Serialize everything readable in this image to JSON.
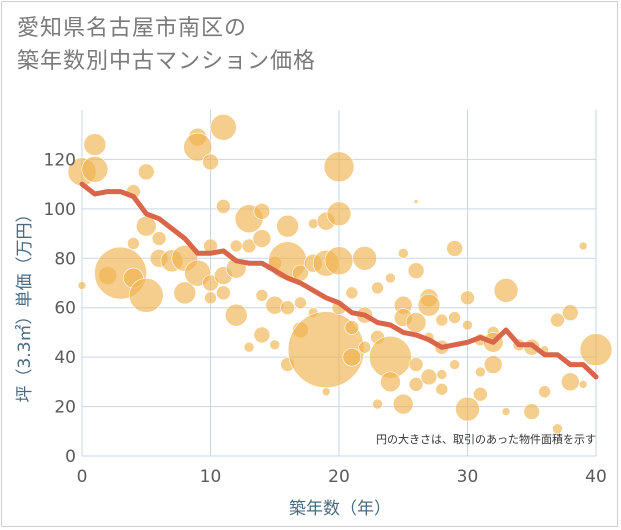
{
  "chart_data": {
    "type": "scatter",
    "title_line1": "愛知県名古屋市南区の",
    "title_line2": "築年数別中古マンション価格",
    "xlabel": "築年数（年）",
    "ylabel": "坪（3.3㎡）単価（万円）",
    "note": "円の大きさは、取引のあった物件面積を示す",
    "xlim": [
      0,
      40
    ],
    "ylim": [
      0,
      140
    ],
    "xticks": [
      "0",
      "10",
      "20",
      "30",
      "40"
    ],
    "yticks": [
      "0",
      "20",
      "40",
      "60",
      "80",
      "100",
      "120"
    ],
    "grid": true,
    "colors": {
      "bubble": "#f0b24f",
      "line": "#d9654a",
      "grid": "#c9d6e3",
      "axis_text": "#4a6a80"
    },
    "trend": [
      {
        "x": 0,
        "y": 110
      },
      {
        "x": 1,
        "y": 106
      },
      {
        "x": 2,
        "y": 107
      },
      {
        "x": 3,
        "y": 107
      },
      {
        "x": 4,
        "y": 105
      },
      {
        "x": 5,
        "y": 98
      },
      {
        "x": 6,
        "y": 96
      },
      {
        "x": 7,
        "y": 92
      },
      {
        "x": 8,
        "y": 88
      },
      {
        "x": 9,
        "y": 82
      },
      {
        "x": 10,
        "y": 82
      },
      {
        "x": 11,
        "y": 83
      },
      {
        "x": 12,
        "y": 79
      },
      {
        "x": 13,
        "y": 78
      },
      {
        "x": 14,
        "y": 78
      },
      {
        "x": 15,
        "y": 75
      },
      {
        "x": 16,
        "y": 72
      },
      {
        "x": 17,
        "y": 70
      },
      {
        "x": 18,
        "y": 67
      },
      {
        "x": 19,
        "y": 64
      },
      {
        "x": 20,
        "y": 62
      },
      {
        "x": 21,
        "y": 58
      },
      {
        "x": 22,
        "y": 57
      },
      {
        "x": 23,
        "y": 54
      },
      {
        "x": 24,
        "y": 53
      },
      {
        "x": 25,
        "y": 50
      },
      {
        "x": 26,
        "y": 49
      },
      {
        "x": 27,
        "y": 47
      },
      {
        "x": 28,
        "y": 44
      },
      {
        "x": 29,
        "y": 45
      },
      {
        "x": 30,
        "y": 46
      },
      {
        "x": 31,
        "y": 48
      },
      {
        "x": 32,
        "y": 46
      },
      {
        "x": 33,
        "y": 51
      },
      {
        "x": 34,
        "y": 45
      },
      {
        "x": 35,
        "y": 45
      },
      {
        "x": 36,
        "y": 41
      },
      {
        "x": 37,
        "y": 41
      },
      {
        "x": 38,
        "y": 37
      },
      {
        "x": 39,
        "y": 37
      },
      {
        "x": 40,
        "y": 32
      }
    ],
    "bubbles": [
      {
        "x": 0,
        "y": 115,
        "r": 14
      },
      {
        "x": 1,
        "y": 126,
        "r": 11
      },
      {
        "x": 1,
        "y": 116,
        "r": 13
      },
      {
        "x": 0,
        "y": 69,
        "r": 4
      },
      {
        "x": 2,
        "y": 73,
        "r": 9
      },
      {
        "x": 3,
        "y": 74,
        "r": 26
      },
      {
        "x": 4,
        "y": 72,
        "r": 10
      },
      {
        "x": 4,
        "y": 107,
        "r": 7
      },
      {
        "x": 4,
        "y": 86,
        "r": 6
      },
      {
        "x": 5,
        "y": 115,
        "r": 8
      },
      {
        "x": 5,
        "y": 93,
        "r": 10
      },
      {
        "x": 5,
        "y": 65,
        "r": 17
      },
      {
        "x": 6,
        "y": 88,
        "r": 7
      },
      {
        "x": 6,
        "y": 80,
        "r": 9
      },
      {
        "x": 7,
        "y": 79,
        "r": 11
      },
      {
        "x": 8,
        "y": 80,
        "r": 13
      },
      {
        "x": 8,
        "y": 66,
        "r": 11
      },
      {
        "x": 9,
        "y": 129,
        "r": 9
      },
      {
        "x": 9,
        "y": 125,
        "r": 14
      },
      {
        "x": 9,
        "y": 74,
        "r": 13
      },
      {
        "x": 10,
        "y": 119,
        "r": 8
      },
      {
        "x": 10,
        "y": 85,
        "r": 7
      },
      {
        "x": 10,
        "y": 70,
        "r": 8
      },
      {
        "x": 10,
        "y": 64,
        "r": 6
      },
      {
        "x": 11,
        "y": 133,
        "r": 13
      },
      {
        "x": 11,
        "y": 101,
        "r": 7
      },
      {
        "x": 11,
        "y": 73,
        "r": 9
      },
      {
        "x": 11,
        "y": 66,
        "r": 7
      },
      {
        "x": 12,
        "y": 85,
        "r": 6
      },
      {
        "x": 12,
        "y": 76,
        "r": 10
      },
      {
        "x": 12,
        "y": 57,
        "r": 11
      },
      {
        "x": 13,
        "y": 96,
        "r": 14
      },
      {
        "x": 13,
        "y": 85,
        "r": 7
      },
      {
        "x": 13,
        "y": 44,
        "r": 5
      },
      {
        "x": 14,
        "y": 99,
        "r": 8
      },
      {
        "x": 14,
        "y": 88,
        "r": 9
      },
      {
        "x": 14,
        "y": 65,
        "r": 6
      },
      {
        "x": 14,
        "y": 49,
        "r": 8
      },
      {
        "x": 15,
        "y": 78,
        "r": 7
      },
      {
        "x": 15,
        "y": 61,
        "r": 9
      },
      {
        "x": 15,
        "y": 45,
        "r": 5
      },
      {
        "x": 16,
        "y": 93,
        "r": 11
      },
      {
        "x": 16,
        "y": 79,
        "r": 19
      },
      {
        "x": 16,
        "y": 60,
        "r": 7
      },
      {
        "x": 16,
        "y": 37,
        "r": 7
      },
      {
        "x": 17,
        "y": 74,
        "r": 8
      },
      {
        "x": 17,
        "y": 62,
        "r": 6
      },
      {
        "x": 17,
        "y": 51,
        "r": 8
      },
      {
        "x": 18,
        "y": 94,
        "r": 5
      },
      {
        "x": 18,
        "y": 78,
        "r": 9
      },
      {
        "x": 18,
        "y": 58,
        "r": 5
      },
      {
        "x": 19,
        "y": 95,
        "r": 9
      },
      {
        "x": 19,
        "y": 78,
        "r": 13
      },
      {
        "x": 19,
        "y": 43,
        "r": 38
      },
      {
        "x": 19,
        "y": 26,
        "r": 4
      },
      {
        "x": 20,
        "y": 117,
        "r": 15
      },
      {
        "x": 20,
        "y": 98,
        "r": 12
      },
      {
        "x": 20,
        "y": 79,
        "r": 14
      },
      {
        "x": 20,
        "y": 60,
        "r": 7
      },
      {
        "x": 21,
        "y": 66,
        "r": 6
      },
      {
        "x": 21,
        "y": 52,
        "r": 7
      },
      {
        "x": 21,
        "y": 40,
        "r": 9
      },
      {
        "x": 22,
        "y": 80,
        "r": 12
      },
      {
        "x": 22,
        "y": 57,
        "r": 8
      },
      {
        "x": 22,
        "y": 44,
        "r": 6
      },
      {
        "x": 23,
        "y": 68,
        "r": 6
      },
      {
        "x": 23,
        "y": 48,
        "r": 7
      },
      {
        "x": 23,
        "y": 21,
        "r": 5
      },
      {
        "x": 24,
        "y": 72,
        "r": 5
      },
      {
        "x": 24,
        "y": 40,
        "r": 21
      },
      {
        "x": 24,
        "y": 30,
        "r": 10
      },
      {
        "x": 25,
        "y": 82,
        "r": 5
      },
      {
        "x": 25,
        "y": 61,
        "r": 9
      },
      {
        "x": 25,
        "y": 56,
        "r": 9
      },
      {
        "x": 25,
        "y": 21,
        "r": 10
      },
      {
        "x": 26,
        "y": 103,
        "r": 2
      },
      {
        "x": 26,
        "y": 75,
        "r": 8
      },
      {
        "x": 26,
        "y": 54,
        "r": 10
      },
      {
        "x": 26,
        "y": 37,
        "r": 7
      },
      {
        "x": 26,
        "y": 29,
        "r": 7
      },
      {
        "x": 27,
        "y": 64,
        "r": 9
      },
      {
        "x": 27,
        "y": 61,
        "r": 11
      },
      {
        "x": 27,
        "y": 48,
        "r": 5
      },
      {
        "x": 27,
        "y": 32,
        "r": 8
      },
      {
        "x": 28,
        "y": 55,
        "r": 6
      },
      {
        "x": 28,
        "y": 44,
        "r": 7
      },
      {
        "x": 28,
        "y": 33,
        "r": 5
      },
      {
        "x": 28,
        "y": 27,
        "r": 6
      },
      {
        "x": 29,
        "y": 84,
        "r": 8
      },
      {
        "x": 29,
        "y": 56,
        "r": 6
      },
      {
        "x": 29,
        "y": 37,
        "r": 5
      },
      {
        "x": 30,
        "y": 64,
        "r": 7
      },
      {
        "x": 30,
        "y": 53,
        "r": 5
      },
      {
        "x": 30,
        "y": 19,
        "r": 12
      },
      {
        "x": 31,
        "y": 47,
        "r": 6
      },
      {
        "x": 31,
        "y": 34,
        "r": 5
      },
      {
        "x": 31,
        "y": 25,
        "r": 7
      },
      {
        "x": 32,
        "y": 50,
        "r": 6
      },
      {
        "x": 32,
        "y": 46,
        "r": 10
      },
      {
        "x": 32,
        "y": 37,
        "r": 9
      },
      {
        "x": 33,
        "y": 67,
        "r": 12
      },
      {
        "x": 33,
        "y": 18,
        "r": 4
      },
      {
        "x": 34,
        "y": 45,
        "r": 6
      },
      {
        "x": 35,
        "y": 44,
        "r": 8
      },
      {
        "x": 35,
        "y": 18,
        "r": 8
      },
      {
        "x": 36,
        "y": 26,
        "r": 6
      },
      {
        "x": 36,
        "y": 43,
        "r": 4
      },
      {
        "x": 37,
        "y": 55,
        "r": 7
      },
      {
        "x": 37,
        "y": 11,
        "r": 5
      },
      {
        "x": 38,
        "y": 58,
        "r": 8
      },
      {
        "x": 38,
        "y": 30,
        "r": 9
      },
      {
        "x": 39,
        "y": 85,
        "r": 4
      },
      {
        "x": 39,
        "y": 29,
        "r": 4
      },
      {
        "x": 40,
        "y": 43,
        "r": 16
      }
    ]
  }
}
